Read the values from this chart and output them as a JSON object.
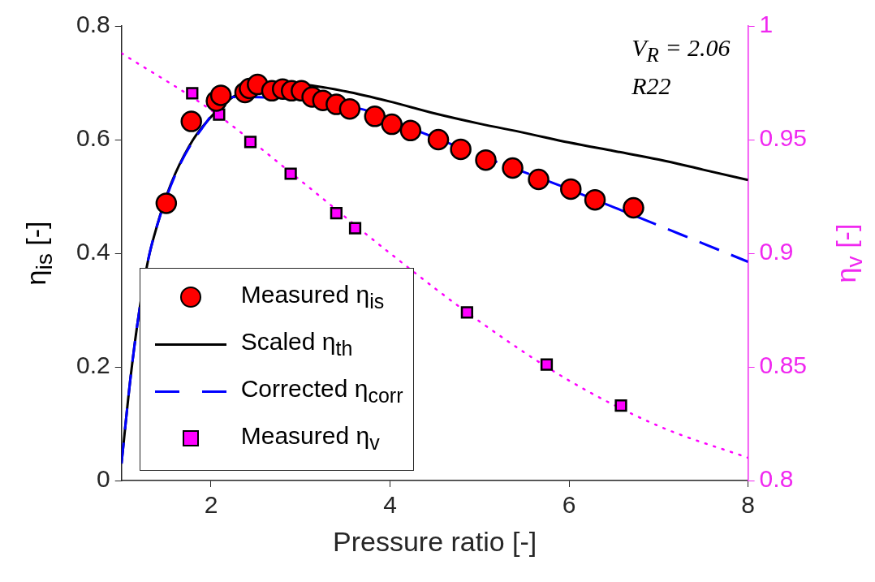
{
  "chart_data": {
    "type": "scatter",
    "xlabel": "Pressure ratio [-]",
    "ylabel": "η$_{is}$ [-]",
    "y2label": "η$_{v}$ [-]",
    "annotations": [
      "V$_{R}$ = 2.06",
      "R22"
    ],
    "xlim": [
      1,
      8
    ],
    "xticks": [
      2,
      4,
      6,
      8
    ],
    "ylim": [
      0,
      0.8
    ],
    "yticks": [
      0,
      0.2,
      0.4,
      0.6,
      0.8
    ],
    "y2lim": [
      0.8,
      1
    ],
    "y2ticks": [
      0.8,
      0.85,
      0.9,
      0.95,
      1
    ],
    "grid": false,
    "legend": "bottom left",
    "series": [
      {
        "name": "Measured η$_{is}$",
        "marker": "circle",
        "color": "#ff0000",
        "x": [
          1.5,
          1.78,
          2.06,
          2.11,
          2.38,
          2.43,
          2.52,
          2.68,
          2.8,
          2.9,
          3.01,
          3.13,
          3.25,
          3.4,
          3.55,
          3.83,
          4.02,
          4.23,
          4.54,
          4.79,
          5.07,
          5.37,
          5.66,
          6.02,
          6.29,
          6.72
        ],
        "values": [
          0.488,
          0.632,
          0.668,
          0.678,
          0.683,
          0.69,
          0.697,
          0.686,
          0.689,
          0.686,
          0.686,
          0.675,
          0.669,
          0.662,
          0.654,
          0.641,
          0.627,
          0.616,
          0.6,
          0.583,
          0.564,
          0.55,
          0.53,
          0.513,
          0.494,
          0.48
        ]
      },
      {
        "name": "Scaled η$_{th}$",
        "type": "line",
        "line_style": "solid",
        "color": "#000000",
        "x": [
          1,
          1.1,
          1.2,
          1.3,
          1.4,
          1.5,
          1.6,
          1.8,
          2,
          2.2,
          2.4,
          2.7,
          3,
          3.5,
          4,
          4.5,
          5,
          5.5,
          6,
          6.5,
          7,
          7.5,
          8
        ],
        "values": [
          0.03,
          0.18,
          0.3,
          0.39,
          0.45,
          0.5,
          0.54,
          0.6,
          0.64,
          0.67,
          0.688,
          0.698,
          0.697,
          0.685,
          0.667,
          0.646,
          0.628,
          0.612,
          0.595,
          0.58,
          0.565,
          0.547,
          0.529
        ]
      },
      {
        "name": "Corrected η$_{corr}$",
        "type": "line",
        "line_style": "dashed",
        "color": "#0000ff",
        "x": [
          1,
          1.1,
          1.2,
          1.3,
          1.4,
          1.62,
          1.9,
          2.25,
          3.7,
          4.38,
          5.22,
          5.85,
          6.5,
          7,
          7.5,
          8
        ],
        "values": [
          0.03,
          0.18,
          0.3,
          0.39,
          0.45,
          0.545,
          0.62,
          0.675,
          0.653,
          0.611,
          0.559,
          0.522,
          0.481,
          0.449,
          0.417,
          0.385
        ]
      },
      {
        "name": "Measured η$_{v}$",
        "marker": "square",
        "axis": "y2",
        "color": "#ff00ff",
        "x": [
          1.79,
          2.09,
          2.44,
          2.89,
          3.4,
          3.61,
          4.86,
          5.75,
          6.58
        ],
        "values": [
          0.9704,
          0.961,
          0.949,
          0.935,
          0.9176,
          0.911,
          0.874,
          0.851,
          0.833
        ]
      },
      {
        "type": "line",
        "line_style": "dotted",
        "axis": "y2",
        "color": "#ff00ff",
        "x": [
          1,
          2,
          3,
          4,
          5,
          6,
          7,
          8
        ],
        "values": [
          0.988,
          0.963,
          0.932,
          0.9,
          0.87,
          0.844,
          0.824,
          0.81
        ]
      }
    ]
  }
}
